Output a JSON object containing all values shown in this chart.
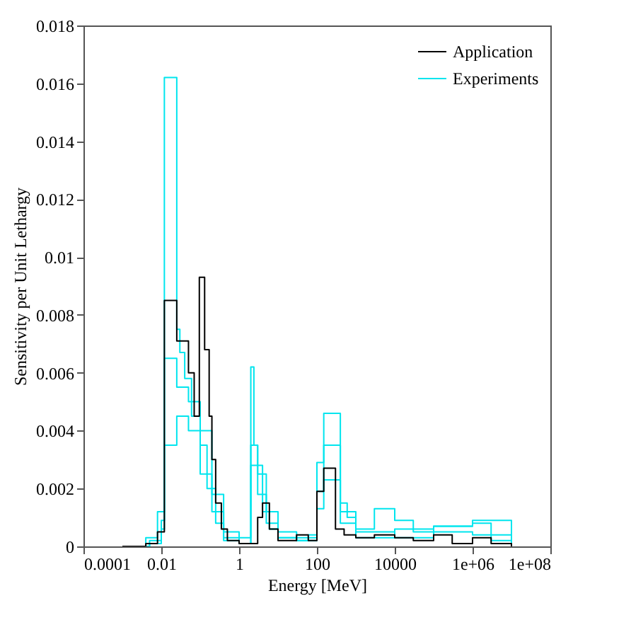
{
  "chart_data": {
    "type": "step",
    "xlabel": "Energy [MeV]",
    "ylabel": "Sensitivity per Unit Lethargy",
    "log": "x",
    "grid": false,
    "legend": "top right",
    "xlim": [
      0.0001,
      100000000
    ],
    "xticks": [
      0.0001,
      0.01,
      1,
      100,
      10000,
      {
        "value": 1000000,
        "label": "1e+06"
      },
      {
        "value": 100000000,
        "label": "1e+08"
      }
    ],
    "ylim": [
      0,
      0.018
    ],
    "yticks": [
      0,
      0.002,
      0.004,
      0.006,
      0.008,
      0.01,
      0.012,
      0.014,
      0.016,
      0.018
    ],
    "series": [
      {
        "name": "Application",
        "color": "#000000",
        "x": [
          0.001,
          0.004,
          0.008,
          0.012,
          0.025,
          0.05,
          0.07,
          0.095,
          0.13,
          0.17,
          0.2,
          0.25,
          0.35,
          0.5,
          1,
          3,
          4,
          6,
          10,
          30,
          60,
          100,
          150,
          300,
          500,
          1000,
          3000,
          10000,
          30000,
          100000,
          300000,
          1000000,
          3000000,
          10000000
        ],
        "values": [
          0,
          0.0001,
          0.0005,
          0.0085,
          0.0071,
          0.006,
          0.0045,
          0.0093,
          0.0068,
          0.0045,
          0.003,
          0.0015,
          0.0006,
          0.0002,
          0.0001,
          0.001,
          0.0015,
          0.0006,
          0.0002,
          0.0004,
          0.0002,
          0.0019,
          0.0027,
          0.0006,
          0.0004,
          0.0003,
          0.0004,
          0.0003,
          0.0002,
          0.0004,
          0.0001,
          0.0003,
          0.0001,
          0
        ]
      },
      {
        "name": "Experiments",
        "color": "#00e5ee",
        "x": [
          0.001,
          0.004,
          0.008,
          0.012,
          0.025,
          0.03,
          0.04,
          0.06,
          0.1,
          0.15,
          0.25,
          0.4,
          1,
          2,
          2.4,
          3,
          4,
          6,
          10,
          30,
          60,
          100,
          150,
          400,
          600,
          1000,
          3000,
          10000,
          30000,
          100000,
          1000000,
          3000000,
          10000000
        ],
        "values": [
          0,
          0.0003,
          0.0012,
          0.0162,
          0.0075,
          0.0067,
          0.0058,
          0.0045,
          0.0035,
          0.002,
          0.0008,
          0.0002,
          0.0003,
          0.0062,
          0.0035,
          0.0028,
          0.0012,
          0.0006,
          0.0003,
          0.0002,
          0.0004,
          0.0029,
          0.0046,
          0.0015,
          0.001,
          0.0006,
          0.0013,
          0.0009,
          0.0005,
          0.0007,
          0.0008,
          0.0002,
          0
        ]
      },
      {
        "color": "#00e5ee",
        "x": [
          0.001,
          0.005,
          0.01,
          0.012,
          0.025,
          0.05,
          0.1,
          0.2,
          0.4,
          1,
          2,
          3,
          5,
          10,
          30,
          100,
          150,
          400,
          1000,
          10000,
          100000,
          1000000,
          10000000
        ],
        "values": [
          0,
          0.0002,
          0.0009,
          0.0035,
          0.0045,
          0.004,
          0.0025,
          0.0012,
          0.0003,
          0.0001,
          0.0035,
          0.0018,
          0.0008,
          0.0003,
          0.0002,
          0.0019,
          0.0023,
          0.0008,
          0.0003,
          0.0006,
          0.0005,
          0.0004,
          0
        ]
      },
      {
        "color": "#00e5ee",
        "x": [
          0.001,
          0.005,
          0.01,
          0.012,
          0.025,
          0.05,
          0.1,
          0.2,
          0.4,
          1,
          2,
          3,
          5,
          10,
          30,
          100,
          150,
          400,
          1000,
          10000,
          100000,
          1000000,
          10000000
        ],
        "values": [
          0,
          0.0001,
          0.0006,
          0.0065,
          0.0055,
          0.005,
          0.004,
          0.0018,
          0.0005,
          0.0001,
          0.0028,
          0.0025,
          0.0012,
          0.0005,
          0.0003,
          0.0013,
          0.0035,
          0.0012,
          0.0005,
          0.0003,
          0.0007,
          0.0009,
          0
        ]
      }
    ]
  }
}
